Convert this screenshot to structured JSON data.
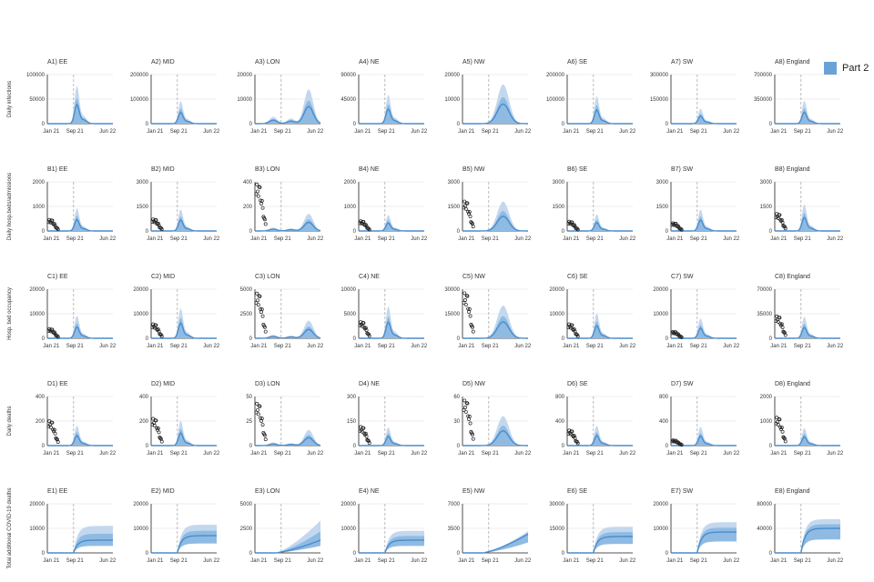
{
  "legend": {
    "label": "Part 2",
    "color": "#6aa2d8"
  },
  "colors": {
    "band_outer": "#c3d8ef",
    "band_inner": "#8fbbe3",
    "median": "#4a8ccc",
    "obs": "#222222",
    "grid": "#dddddd",
    "vline": "#aaaaaa"
  },
  "chart_data": {
    "type": "line",
    "title": "",
    "x_tick_labels": [
      "Jan 21",
      "Sep 21",
      "Jun 22"
    ],
    "xlim": [
      "Jan 21",
      "Jun 22"
    ],
    "vline_at": "Jul 21",
    "legend_position": "top-right",
    "row_ylabels": [
      "Daily infections",
      "Daily hosp.beds/admissions",
      "Hosp. bed occupancy",
      "Daily deaths",
      "Total additional COVID-19 deaths"
    ],
    "regions": [
      "EE",
      "MID",
      "LON",
      "NE",
      "NW",
      "SE",
      "SW",
      "England"
    ],
    "panels": [
      {
        "id": "A1",
        "title": "A1) EE",
        "row": 0,
        "col": 0,
        "ylim": [
          0,
          100000
        ],
        "yticks": [
          "0",
          "50000",
          "100000"
        ],
        "shape": "peak",
        "peak": 38000,
        "obs": 0
      },
      {
        "id": "A2",
        "title": "A2) MID",
        "row": 0,
        "col": 1,
        "ylim": [
          0,
          200000
        ],
        "yticks": [
          "0",
          "100000",
          "200000"
        ],
        "shape": "peak",
        "peak": 45000,
        "obs": 0
      },
      {
        "id": "A3",
        "title": "A3) LON",
        "row": 0,
        "col": 2,
        "ylim": [
          0,
          20000
        ],
        "yticks": [
          "0",
          "10000",
          "20000"
        ],
        "shape": "lon",
        "peak": 7000,
        "obs": 0
      },
      {
        "id": "A4",
        "title": "A4) NE",
        "row": 0,
        "col": 3,
        "ylim": [
          0,
          90000
        ],
        "yticks": [
          "0",
          "45000",
          "90000"
        ],
        "shape": "peak",
        "peak": 26000,
        "obs": 0
      },
      {
        "id": "A5",
        "title": "A5) NW",
        "row": 0,
        "col": 4,
        "ylim": [
          0,
          20000
        ],
        "yticks": [
          "0",
          "10000",
          "20000"
        ],
        "shape": "broad",
        "peak": 8000,
        "obs": 0
      },
      {
        "id": "A6",
        "title": "A6) SE",
        "row": 0,
        "col": 5,
        "ylim": [
          0,
          200000
        ],
        "yticks": [
          "0",
          "100000",
          "200000"
        ],
        "shape": "peak",
        "peak": 55000,
        "obs": 0
      },
      {
        "id": "A7",
        "title": "A7) SW",
        "row": 0,
        "col": 6,
        "ylim": [
          0,
          300000
        ],
        "yticks": [
          "0",
          "150000",
          "300000"
        ],
        "shape": "peak",
        "peak": 45000,
        "obs": 0
      },
      {
        "id": "A8",
        "title": "A8) England",
        "row": 0,
        "col": 7,
        "ylim": [
          0,
          700000
        ],
        "yticks": [
          "0",
          "350000",
          "700000"
        ],
        "shape": "peak",
        "peak": 160000,
        "obs": 0
      },
      {
        "id": "B1",
        "title": "B1) EE",
        "row": 1,
        "col": 0,
        "ylim": [
          0,
          2000
        ],
        "yticks": [
          "0",
          "1000",
          "2000"
        ],
        "shape": "peak",
        "peak": 450,
        "obs": 480
      },
      {
        "id": "B2",
        "title": "B2) MID",
        "row": 1,
        "col": 1,
        "ylim": [
          0,
          3000
        ],
        "yticks": [
          "0",
          "1500",
          "3000"
        ],
        "shape": "peak",
        "peak": 650,
        "obs": 750
      },
      {
        "id": "B3",
        "title": "B3) LON",
        "row": 1,
        "col": 2,
        "ylim": [
          0,
          400
        ],
        "yticks": [
          "0",
          "200",
          "400"
        ],
        "shape": "lon",
        "peak": 70,
        "obs": 400
      },
      {
        "id": "B4",
        "title": "B4) NE",
        "row": 1,
        "col": 3,
        "ylim": [
          0,
          2000
        ],
        "yticks": [
          "0",
          "1000",
          "2000"
        ],
        "shape": "peak",
        "peak": 320,
        "obs": 420
      },
      {
        "id": "B5",
        "title": "B5) NW",
        "row": 1,
        "col": 4,
        "ylim": [
          0,
          3000
        ],
        "yticks": [
          "0",
          "1500",
          "3000"
        ],
        "shape": "broad",
        "peak": 900,
        "obs": 1900
      },
      {
        "id": "B6",
        "title": "B6) SE",
        "row": 1,
        "col": 5,
        "ylim": [
          0,
          3000
        ],
        "yticks": [
          "0",
          "1500",
          "3000"
        ],
        "shape": "peak",
        "peak": 500,
        "obs": 600
      },
      {
        "id": "B7",
        "title": "B7) SW",
        "row": 1,
        "col": 6,
        "ylim": [
          0,
          3000
        ],
        "yticks": [
          "0",
          "1500",
          "3000"
        ],
        "shape": "peak",
        "peak": 650,
        "obs": 500
      },
      {
        "id": "B8",
        "title": "B8) England",
        "row": 1,
        "col": 7,
        "ylim": [
          0,
          3000
        ],
        "yticks": [
          "0",
          "1500",
          "3000"
        ],
        "shape": "peak",
        "peak": 800,
        "obs": 1100
      },
      {
        "id": "C1",
        "title": "C1) EE",
        "row": 2,
        "col": 0,
        "ylim": [
          0,
          20000
        ],
        "yticks": [
          "0",
          "10000",
          "20000"
        ],
        "shape": "peak",
        "peak": 4500,
        "obs": 4000
      },
      {
        "id": "C2",
        "title": "C2) MID",
        "row": 2,
        "col": 1,
        "ylim": [
          0,
          20000
        ],
        "yticks": [
          "0",
          "10000",
          "20000"
        ],
        "shape": "peak",
        "peak": 6000,
        "obs": 6000
      },
      {
        "id": "C3",
        "title": "C3) LON",
        "row": 2,
        "col": 2,
        "ylim": [
          0,
          5000
        ],
        "yticks": [
          "0",
          "2500",
          "5000"
        ],
        "shape": "lon",
        "peak": 900,
        "obs": 4800
      },
      {
        "id": "C4",
        "title": "C4) NE",
        "row": 2,
        "col": 3,
        "ylim": [
          0,
          10000
        ],
        "yticks": [
          "0",
          "5000",
          "10000"
        ],
        "shape": "peak",
        "peak": 3200,
        "obs": 3500
      },
      {
        "id": "C5",
        "title": "C5) NW",
        "row": 2,
        "col": 4,
        "ylim": [
          0,
          30000
        ],
        "yticks": [
          "0",
          "15000",
          "30000"
        ],
        "shape": "broad",
        "peak": 10000,
        "obs": 29000
      },
      {
        "id": "C6",
        "title": "C6) SE",
        "row": 2,
        "col": 5,
        "ylim": [
          0,
          20000
        ],
        "yticks": [
          "0",
          "10000",
          "20000"
        ],
        "shape": "peak",
        "peak": 5000,
        "obs": 6000
      },
      {
        "id": "C7",
        "title": "C7) SW",
        "row": 2,
        "col": 6,
        "ylim": [
          0,
          20000
        ],
        "yticks": [
          "0",
          "10000",
          "20000"
        ],
        "shape": "peak",
        "peak": 4000,
        "obs": 2800
      },
      {
        "id": "C8",
        "title": "C8) England",
        "row": 2,
        "col": 7,
        "ylim": [
          0,
          70000
        ],
        "yticks": [
          "0",
          "35000",
          "70000"
        ],
        "shape": "peak",
        "peak": 15000,
        "obs": 33000
      },
      {
        "id": "D1",
        "title": "D1) EE",
        "row": 3,
        "col": 0,
        "ylim": [
          0,
          400
        ],
        "yticks": [
          "0",
          "200",
          "400"
        ],
        "shape": "peak",
        "peak": 80,
        "obs": 210
      },
      {
        "id": "D2",
        "title": "D2) MID",
        "row": 3,
        "col": 1,
        "ylim": [
          0,
          400
        ],
        "yticks": [
          "0",
          "200",
          "400"
        ],
        "shape": "peak",
        "peak": 100,
        "obs": 230
      },
      {
        "id": "D3",
        "title": "D3) LON",
        "row": 3,
        "col": 2,
        "ylim": [
          0,
          50
        ],
        "yticks": [
          "0",
          "25",
          "50"
        ],
        "shape": "lon",
        "peak": 8,
        "obs": 45
      },
      {
        "id": "D4",
        "title": "D4) NE",
        "row": 3,
        "col": 3,
        "ylim": [
          0,
          300
        ],
        "yticks": [
          "0",
          "150",
          "300"
        ],
        "shape": "peak",
        "peak": 55,
        "obs": 120
      },
      {
        "id": "D5",
        "title": "D5) NW",
        "row": 3,
        "col": 4,
        "ylim": [
          0,
          60
        ],
        "yticks": [
          "0",
          "30",
          "60"
        ],
        "shape": "broad",
        "peak": 18,
        "obs": 58
      },
      {
        "id": "D6",
        "title": "D6) SE",
        "row": 3,
        "col": 5,
        "ylim": [
          0,
          800
        ],
        "yticks": [
          "0",
          "400",
          "800"
        ],
        "shape": "peak",
        "peak": 160,
        "obs": 260
      },
      {
        "id": "D7",
        "title": "D7) SW",
        "row": 3,
        "col": 6,
        "ylim": [
          0,
          800
        ],
        "yticks": [
          "0",
          "400",
          "800"
        ],
        "shape": "peak",
        "peak": 150,
        "obs": 90
      },
      {
        "id": "D8",
        "title": "D8) England",
        "row": 3,
        "col": 7,
        "ylim": [
          0,
          2000
        ],
        "yticks": [
          "0",
          "1000",
          "2000"
        ],
        "shape": "peak",
        "peak": 350,
        "obs": 1200
      },
      {
        "id": "E1",
        "title": "E1) EE",
        "row": 4,
        "col": 0,
        "ylim": [
          0,
          20000
        ],
        "yticks": [
          "0",
          "10000",
          "20000"
        ],
        "shape": "cumul",
        "peak": 5200,
        "upper": 11000,
        "obs": 0
      },
      {
        "id": "E2",
        "title": "E2) MID",
        "row": 4,
        "col": 1,
        "ylim": [
          0,
          20000
        ],
        "yticks": [
          "0",
          "10000",
          "20000"
        ],
        "shape": "cumul",
        "peak": 7000,
        "upper": 11500,
        "obs": 0
      },
      {
        "id": "E3",
        "title": "E3) LON",
        "row": 4,
        "col": 2,
        "ylim": [
          0,
          5000
        ],
        "yticks": [
          "0",
          "2500",
          "5000"
        ],
        "shape": "cumul_slow",
        "peak": 1300,
        "upper": 3300,
        "obs": 0
      },
      {
        "id": "E4",
        "title": "E4) NE",
        "row": 4,
        "col": 3,
        "ylim": [
          0,
          20000
        ],
        "yticks": [
          "0",
          "10000",
          "20000"
        ],
        "shape": "cumul",
        "peak": 5200,
        "upper": 9000,
        "obs": 0
      },
      {
        "id": "E5",
        "title": "E5) NW",
        "row": 4,
        "col": 4,
        "ylim": [
          0,
          7000
        ],
        "yticks": [
          "0",
          "3500",
          "7000"
        ],
        "shape": "cumul_slow",
        "peak": 2700,
        "upper": 3100,
        "obs": 0
      },
      {
        "id": "E6",
        "title": "E6) SE",
        "row": 4,
        "col": 5,
        "ylim": [
          0,
          30000
        ],
        "yticks": [
          "0",
          "15000",
          "30000"
        ],
        "shape": "cumul",
        "peak": 10000,
        "upper": 16000,
        "obs": 0
      },
      {
        "id": "E7",
        "title": "E7) SW",
        "row": 4,
        "col": 6,
        "ylim": [
          0,
          20000
        ],
        "yticks": [
          "0",
          "10000",
          "20000"
        ],
        "shape": "cumul",
        "peak": 8500,
        "upper": 12500,
        "obs": 0
      },
      {
        "id": "E8",
        "title": "E8) England",
        "row": 4,
        "col": 7,
        "ylim": [
          0,
          80000
        ],
        "yticks": [
          "0",
          "40000",
          "80000"
        ],
        "shape": "cumul",
        "peak": 40000,
        "upper": 55000,
        "obs": 0
      }
    ]
  }
}
